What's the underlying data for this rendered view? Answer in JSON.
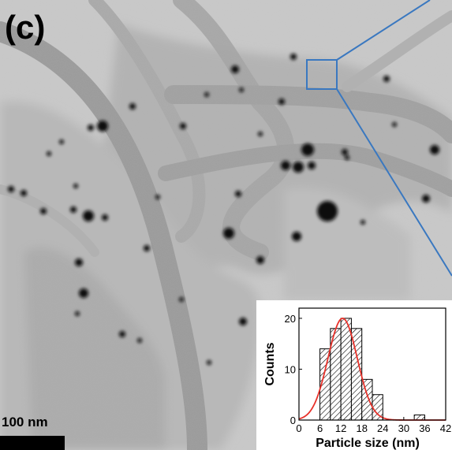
{
  "panel_label": "(c)",
  "scale_bar": {
    "label": "100 nm"
  },
  "colors": {
    "background": "#c9c9c9",
    "fiber": "#9a9a9a",
    "particle": "#111111",
    "zoom_box": "#3a78c0",
    "fit_curve": "#e8312a"
  },
  "chart_data": {
    "type": "bar",
    "x": [
      7.5,
      10.5,
      13.5,
      16.5,
      19.5,
      22.5,
      34.5
    ],
    "bin_edges": [
      [
        6,
        9
      ],
      [
        9,
        12
      ],
      [
        12,
        15
      ],
      [
        15,
        18
      ],
      [
        18,
        21
      ],
      [
        21,
        24
      ],
      [
        33,
        36
      ]
    ],
    "values": [
      14,
      18,
      20,
      18,
      8,
      5,
      1
    ],
    "xlabel": "Particle size (nm)",
    "ylabel": "Counts",
    "xlim": [
      0,
      42
    ],
    "ylim": [
      0,
      22
    ],
    "xticks": [
      "0",
      "6",
      "12",
      "18",
      "24",
      "30",
      "36",
      "42"
    ],
    "yticks": [
      "0",
      "10",
      "20"
    ],
    "fit": {
      "type": "gaussian",
      "mean": 12.5,
      "sigma": 4.2,
      "peak": 20
    },
    "grid": false,
    "bar_pattern": "hatched"
  }
}
